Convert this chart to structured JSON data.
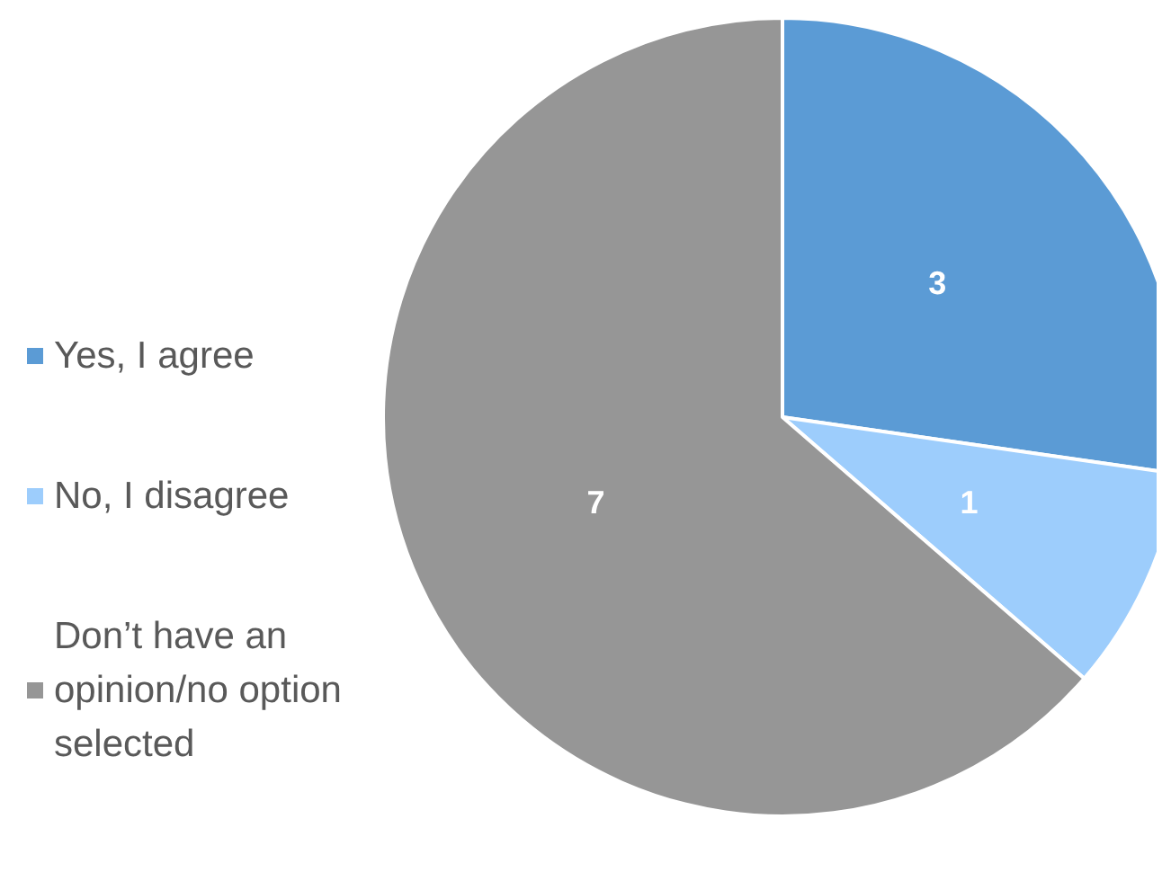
{
  "chart_data": {
    "type": "pie",
    "categories": [
      "Yes, I agree",
      "No, I disagree",
      "Don’t have an opinion/no option selected"
    ],
    "values": [
      3,
      1,
      7
    ],
    "colors": [
      "#5b9bd5",
      "#9dcdfc",
      "#969696"
    ],
    "data_labels": true,
    "legend": "left"
  }
}
